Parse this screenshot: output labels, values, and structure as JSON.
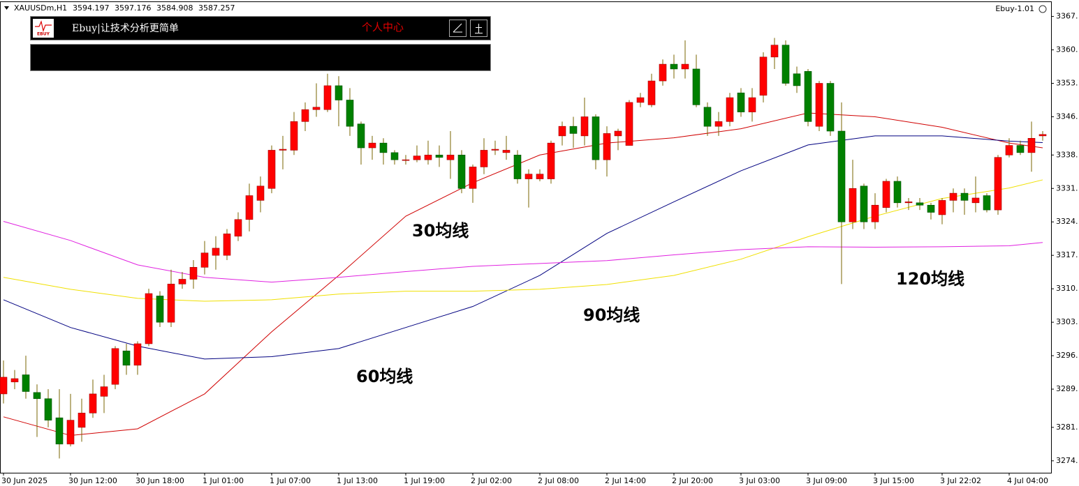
{
  "header": {
    "symbol": "XAUUSDm,H1",
    "ohlc": [
      "3594.197",
      "3597.176",
      "3584.908",
      "3587.257"
    ],
    "indicator": "Ebuy-1.01"
  },
  "panel": {
    "logo": "EBUY",
    "slogan": "Ebuy|让技术分析更简单",
    "link": "个人中心"
  },
  "chart_data": {
    "type": "candlestick",
    "categories": [
      "30 Jun 2025",
      null,
      null,
      null,
      null,
      null,
      "30 Jun 12:00",
      null,
      null,
      null,
      null,
      null,
      "30 Jun 18:00",
      null,
      null,
      null,
      null,
      null,
      "1 Jul 01:00",
      null,
      null,
      null,
      null,
      null,
      "1 Jul 07:00",
      null,
      null,
      null,
      null,
      null,
      "1 Jul 13:00",
      null,
      null,
      null,
      null,
      null,
      "1 Jul 19:00",
      null,
      null,
      null,
      null,
      null,
      "2 Jul 02:00",
      null,
      null,
      null,
      null,
      null,
      "2 Jul 08:00",
      null,
      null,
      null,
      null,
      null,
      "2 Jul 14:00",
      null,
      null,
      null,
      null,
      null,
      "2 Jul 20:00",
      null,
      null,
      null,
      null,
      null,
      "3 Jul 03:00",
      null,
      null,
      null,
      null,
      null,
      "3 Jul 09:00",
      null,
      null,
      null,
      null,
      null,
      "3 Jul 15:00",
      null,
      null,
      null,
      null,
      null,
      "3 Jul 22:02",
      null,
      null,
      null,
      null,
      null,
      "4 Jul 04:00",
      null,
      null,
      null
    ],
    "open": [
      3288,
      3290.5,
      3292,
      3288.3,
      3287,
      3283,
      3277.5,
      3281,
      3284,
      3287.5,
      3290,
      3297,
      3294,
      3298.5,
      3308.5,
      3303,
      3311,
      3312,
      3314.5,
      3317,
      3317,
      3321,
      3324.5,
      3328.5,
      3331,
      3339,
      3339,
      3345,
      3347.5,
      3347.5,
      3352.5,
      3349.5,
      3344.5,
      3339.5,
      3340.5,
      3338.5,
      3337,
      3337,
      3337,
      3338,
      3337,
      3338,
      3331,
      3335.5,
      3339,
      3338.5,
      3338,
      3333,
      3333,
      3333,
      3342,
      3344,
      3342,
      3346,
      3337,
      3342,
      3340,
      3349,
      3348.5,
      3353.5,
      3357,
      3356,
      3356,
      3348,
      3344,
      3345,
      3351,
      3347,
      3350.5,
      3358.5,
      3361,
      3355,
      3355.5,
      3344,
      3353,
      3343,
      3324,
      3331.5,
      3324,
      3327,
      3332.5,
      3328,
      3328,
      3327.5,
      3325.5,
      3328.5,
      3330,
      3328,
      3329.5,
      3326.5,
      3338,
      3340,
      3338.5,
      3342
    ],
    "high": [
      3295,
      3293,
      3296,
      3290,
      3289,
      3289,
      3288,
      3287,
      3291,
      3292,
      3298,
      3298.5,
      3299,
      3310,
      3309.5,
      3314,
      3313.5,
      3316,
      3320,
      3321,
      3322.5,
      3326,
      3332,
      3333.5,
      3340,
      3342,
      3347,
      3349,
      3353,
      3355,
      3354.5,
      3352,
      3345,
      3342,
      3341.5,
      3339,
      3338,
      3340,
      3341,
      3340,
      3343,
      3339,
      3336,
      3341.5,
      3341,
      3342,
      3339,
      3335,
      3335,
      3341,
      3345,
      3346,
      3350,
      3346.5,
      3344,
      3343.5,
      3349.5,
      3351,
      3355,
      3358,
      3359,
      3362,
      3359,
      3349,
      3347,
      3351,
      3352,
      3352,
      3359.5,
      3362.5,
      3362,
      3356.5,
      3356,
      3353.5,
      3353.5,
      3349,
      3337,
      3332,
      3330,
      3333,
      3333.5,
      3329,
      3329,
      3328,
      3329,
      3331,
      3331,
      3333.5,
      3330,
      3338,
      3341.5,
      3341,
      3345,
      3343
    ],
    "low": [
      3286,
      3289,
      3287,
      3279,
      3281,
      3274.5,
      3277,
      3278,
      3283,
      3284,
      3289,
      3292,
      3292,
      3298,
      3302,
      3302,
      3310,
      3310,
      3313,
      3314,
      3316,
      3320,
      3322,
      3326,
      3330,
      3335,
      3338,
      3343,
      3346,
      3347,
      3344,
      3342,
      3336,
      3337,
      3336,
      3336,
      3336,
      3336.5,
      3336,
      3335.5,
      3333,
      3330,
      3328,
      3334,
      3338,
      3337,
      3332,
      3327,
      3332.5,
      3332,
      3340,
      3339.5,
      3340,
      3335,
      3333.5,
      3339,
      3340,
      3348,
      3348,
      3352.5,
      3354,
      3354,
      3348,
      3342,
      3342,
      3344,
      3346,
      3345,
      3349,
      3356,
      3352.5,
      3351,
      3344,
      3343,
      3342,
      3311,
      3322.5,
      3322.5,
      3322.5,
      3326,
      3327,
      3326.5,
      3326.5,
      3324.5,
      3323.5,
      3326,
      3325.5,
      3326,
      3326,
      3325.5,
      3337.5,
      3338,
      3334.5,
      3341
    ],
    "close": [
      3291.5,
      3291.2,
      3288.5,
      3287,
      3282.5,
      3277.5,
      3282.5,
      3284,
      3288,
      3289.5,
      3297.5,
      3294,
      3298.5,
      3309,
      3303,
      3311,
      3312,
      3314.5,
      3317.5,
      3318.5,
      3321.5,
      3324.5,
      3329.5,
      3331.5,
      3339,
      3339.2,
      3345,
      3347.5,
      3348,
      3352.5,
      3349.5,
      3344,
      3339.5,
      3340.5,
      3338.5,
      3337,
      3337,
      3337.8,
      3338,
      3337.5,
      3338,
      3331,
      3335.5,
      3339,
      3339.2,
      3339,
      3333,
      3334,
      3334,
      3340.5,
      3344,
      3342.5,
      3346,
      3337,
      3342.5,
      3343,
      3349,
      3350,
      3353.5,
      3357,
      3356,
      3357,
      3348.5,
      3344,
      3345,
      3350,
      3347,
      3350,
      3358.5,
      3361,
      3353,
      3352.5,
      3345,
      3353,
      3343,
      3324,
      3331,
      3324,
      3327.5,
      3332.5,
      3328,
      3328.2,
      3327.5,
      3326,
      3328.5,
      3330,
      3328.5,
      3329,
      3326.5,
      3337.5,
      3340,
      3338.5,
      3341.5,
      3342.3
    ],
    "up_color": "#ff0000",
    "down_color": "#008000",
    "wick_color": "#7a6400",
    "lines": [
      {
        "name": "30均线",
        "color": "#d00000",
        "x": [
          0,
          6,
          12,
          18,
          24,
          30,
          36,
          42,
          48,
          54,
          60,
          66,
          72,
          78,
          84,
          90,
          93
        ],
        "values": [
          3283.2,
          3279.3,
          3280.7,
          3288,
          3301,
          3312.8,
          3325.2,
          3332.2,
          3338,
          3340.5,
          3341.6,
          3343.5,
          3346.8,
          3346,
          3343.8,
          3340.5,
          3339.5
        ]
      },
      {
        "name": "60均线",
        "color": "#000080",
        "x": [
          0,
          6,
          12,
          18,
          24,
          30,
          36,
          42,
          48,
          54,
          60,
          66,
          72,
          78,
          84,
          90,
          93
        ],
        "values": [
          3307.7,
          3301.9,
          3298,
          3295.3,
          3295.8,
          3297.5,
          3301.9,
          3306.3,
          3312.8,
          3321.6,
          3328.2,
          3334.7,
          3340.1,
          3342,
          3342,
          3340.9,
          3340.6
        ]
      },
      {
        "name": "90均线",
        "color": "#f0e000",
        "x": [
          0,
          6,
          12,
          18,
          24,
          30,
          36,
          42,
          48,
          54,
          60,
          66,
          72,
          78,
          84,
          90,
          93
        ],
        "values": [
          3312.4,
          3309.9,
          3308,
          3307.4,
          3307.7,
          3308.9,
          3309.5,
          3309.5,
          3309.9,
          3310.9,
          3312.8,
          3316.2,
          3320.9,
          3325.2,
          3328.9,
          3331.1,
          3332.8
        ]
      },
      {
        "name": "120均线",
        "color": "#e020e0",
        "x": [
          0,
          6,
          12,
          18,
          24,
          30,
          36,
          42,
          48,
          54,
          60,
          66,
          72,
          78,
          84,
          90,
          93
        ],
        "values": [
          3324.1,
          3320.1,
          3315,
          3312.4,
          3311.4,
          3312.4,
          3313.6,
          3314.7,
          3315.3,
          3315.9,
          3317.1,
          3318.2,
          3318.8,
          3318.7,
          3318.8,
          3319,
          3319.7
        ]
      }
    ],
    "ylim": [
      3271.5,
      3370
    ],
    "yticks": [
      {
        "value": 3274,
        "label": "3274."
      },
      {
        "value": 3281,
        "label": "3281."
      },
      {
        "value": 3289,
        "label": "3289."
      },
      {
        "value": 3296,
        "label": "3296."
      },
      {
        "value": 3303,
        "label": "3303."
      },
      {
        "value": 3310,
        "label": "3310."
      },
      {
        "value": 3317,
        "label": "3317."
      },
      {
        "value": 3324,
        "label": "3324."
      },
      {
        "value": 3331,
        "label": "3331."
      },
      {
        "value": 3338,
        "label": "3338."
      },
      {
        "value": 3346,
        "label": "3346."
      },
      {
        "value": 3353,
        "label": "3353."
      },
      {
        "value": 3360,
        "label": "3360."
      },
      {
        "value": 3367,
        "label": "3367."
      }
    ],
    "grid": false
  }
}
